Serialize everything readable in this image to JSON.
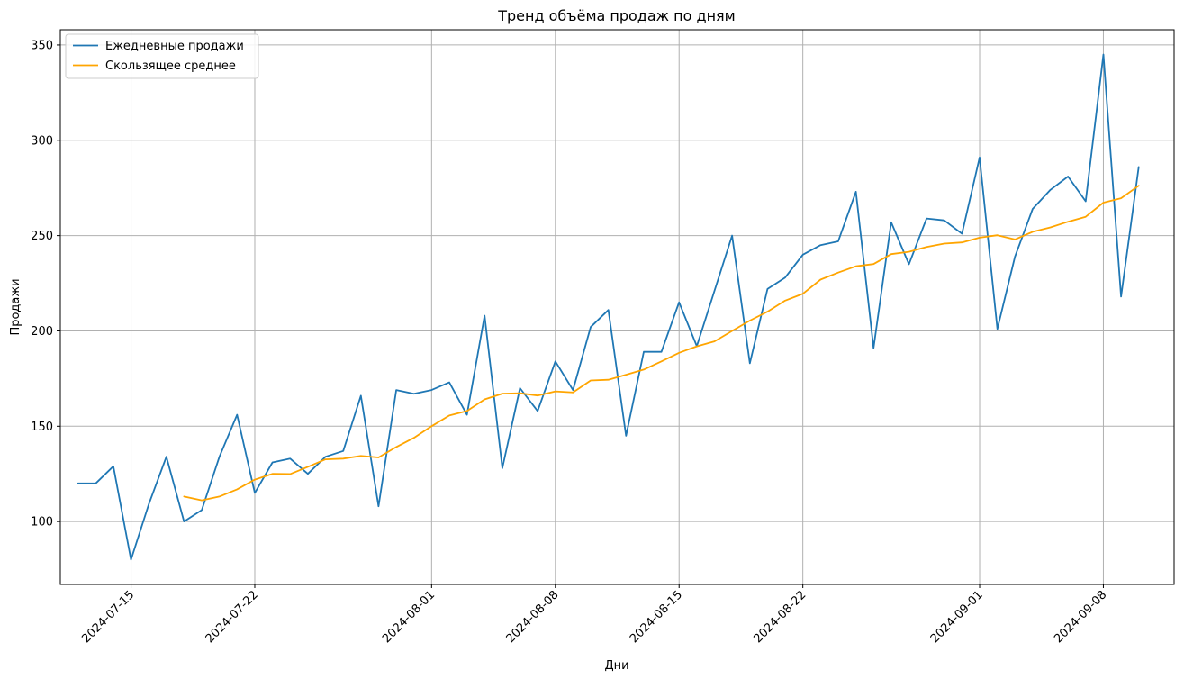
{
  "chart_data": {
    "type": "line",
    "title": "Тренд объёма продаж по дням",
    "xlabel": "Дни",
    "ylabel": "Продажи",
    "x_start": "2024-07-12",
    "xlim": [
      "2024-07-11",
      "2024-09-12"
    ],
    "ylim": [
      67,
      358
    ],
    "x_ticks": [
      "2024-07-15",
      "2024-07-22",
      "2024-08-01",
      "2024-08-08",
      "2024-08-15",
      "2024-08-22",
      "2024-09-01",
      "2024-09-08"
    ],
    "y_ticks": [
      100,
      150,
      200,
      250,
      300,
      350
    ],
    "grid": true,
    "legend_position": "upper-left",
    "series": [
      {
        "name": "Ежедневные продажи",
        "color": "#1f77b4",
        "values": [
          120,
          120,
          129,
          80,
          109,
          134,
          100,
          106,
          134,
          156,
          115,
          131,
          133,
          125,
          134,
          137,
          166,
          108,
          169,
          167,
          169,
          173,
          156,
          208,
          128,
          170,
          158,
          184,
          169,
          202,
          211,
          145,
          189,
          189,
          215,
          192,
          221,
          250,
          183,
          222,
          228,
          240,
          245,
          247,
          273,
          191,
          257,
          235,
          259,
          258,
          251,
          291,
          201,
          239,
          264,
          274,
          281,
          268,
          345,
          218,
          286
        ]
      },
      {
        "name": "Скользящее среднее",
        "color": "#ffa500",
        "values": [
          null,
          null,
          null,
          null,
          null,
          null,
          113.1,
          111.1,
          113.1,
          116.9,
          122.0,
          125.0,
          124.9,
          128.7,
          132.6,
          133.0,
          134.4,
          133.6,
          139.1,
          143.9,
          150.0,
          155.6,
          158.0,
          164.1,
          167.1,
          167.3,
          166.1,
          168.3,
          167.7,
          174.0,
          174.4,
          177.0,
          179.7,
          184.0,
          188.5,
          191.9,
          194.5,
          200.0,
          205.4,
          210.1,
          215.9,
          219.5,
          226.9,
          230.6,
          233.9,
          235.1,
          240.3,
          241.5,
          244.0,
          245.8,
          246.4,
          248.9,
          250.2,
          248.0,
          252.0,
          254.3,
          257.3,
          259.9,
          267.3,
          269.6,
          276.2
        ]
      }
    ]
  }
}
